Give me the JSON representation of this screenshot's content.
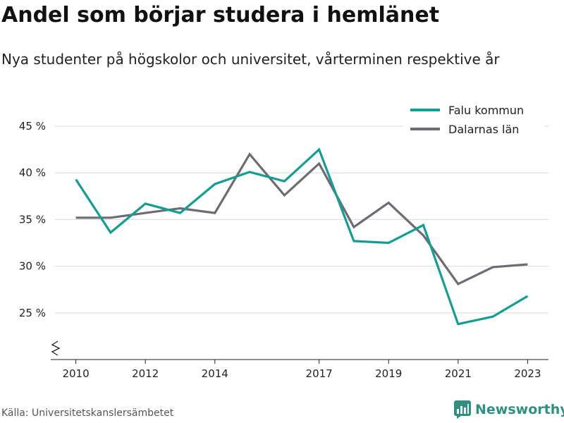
{
  "header": {
    "title": "Andel som börjar studera i hemlänet",
    "subtitle": "Nya studenter på högskolor och universitet, vårterminen respektive år"
  },
  "footer": {
    "source": "Källa: Universitetskanslersämbetet",
    "brand": "Newsworthy"
  },
  "colors": {
    "falu": "#139e94",
    "dalarna": "#6d6c73",
    "grid": "#d9d9d9",
    "brand": "#2f8f83"
  },
  "chart_data": {
    "type": "line",
    "x": [
      2010,
      2011,
      2012,
      2013,
      2014,
      2015,
      2016,
      2017,
      2018,
      2019,
      2020,
      2021,
      2022,
      2023
    ],
    "x_ticks": [
      2010,
      2012,
      2014,
      2017,
      2019,
      2021,
      2023
    ],
    "x_tick_labels": [
      "2010",
      "2012",
      "2014",
      "2017",
      "2019",
      "2021",
      "2023"
    ],
    "y_ticks": [
      25,
      30,
      35,
      40,
      45
    ],
    "y_tick_labels": [
      "25 %",
      "30 %",
      "35 %",
      "40 %",
      "45 %"
    ],
    "ylim": [
      20,
      45
    ],
    "y_axis_broken": true,
    "grid": true,
    "legend_position": "top-right",
    "series": [
      {
        "name": "Falu kommun",
        "values": [
          39.3,
          33.6,
          36.7,
          35.7,
          38.8,
          40.1,
          39.1,
          42.5,
          32.7,
          32.5,
          34.4,
          23.8,
          24.6,
          26.8
        ]
      },
      {
        "name": "Dalarnas län",
        "values": [
          35.2,
          35.2,
          35.7,
          36.2,
          35.7,
          42.0,
          37.6,
          41.0,
          34.2,
          36.8,
          33.3,
          28.1,
          29.9,
          30.2
        ]
      }
    ]
  }
}
